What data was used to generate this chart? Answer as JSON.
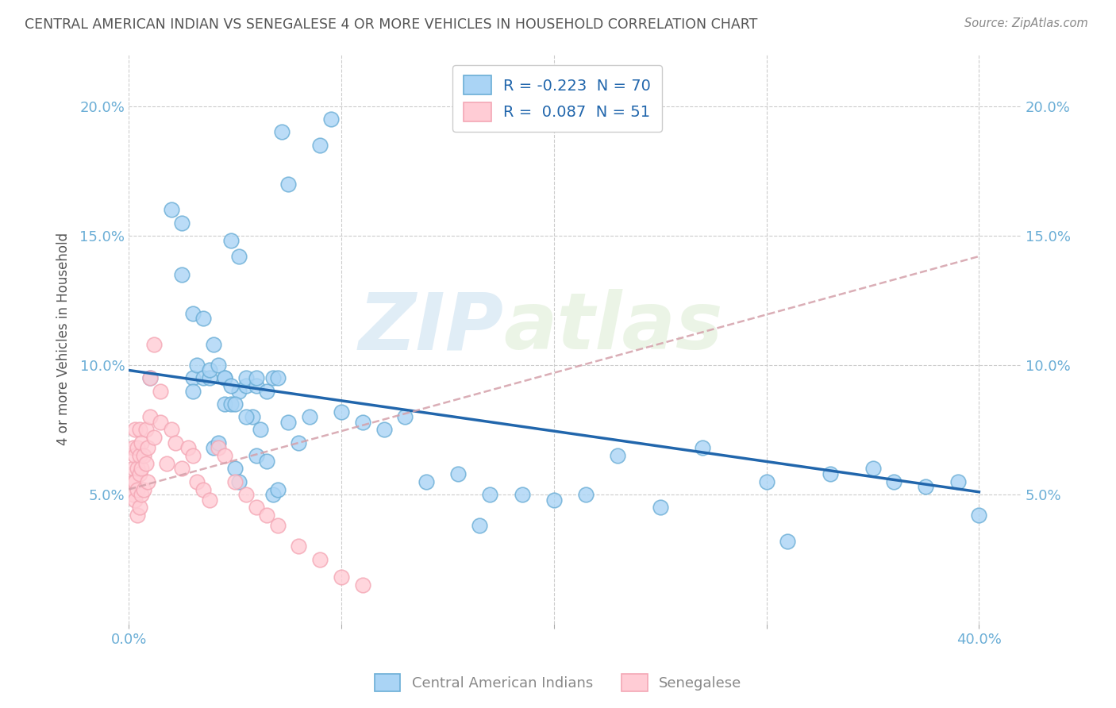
{
  "title": "CENTRAL AMERICAN INDIAN VS SENEGALESE 4 OR MORE VEHICLES IN HOUSEHOLD CORRELATION CHART",
  "source": "Source: ZipAtlas.com",
  "ylabel": "4 or more Vehicles in Household",
  "xlim": [
    0.0,
    0.42
  ],
  "ylim": [
    0.0,
    0.22
  ],
  "yticks": [
    0.0,
    0.05,
    0.1,
    0.15,
    0.2
  ],
  "ytick_labels_left": [
    "",
    "5.0%",
    "10.0%",
    "15.0%",
    "20.0%"
  ],
  "ytick_labels_right": [
    "",
    "5.0%",
    "10.0%",
    "15.0%",
    "20.0%"
  ],
  "xticks": [
    0.0,
    0.1,
    0.2,
    0.3,
    0.4
  ],
  "xtick_labels": [
    "0.0%",
    "",
    "",
    "",
    "40.0%"
  ],
  "watermark_part1": "ZIP",
  "watermark_part2": "atlas",
  "blue_scatter_x": [
    0.01,
    0.02,
    0.025,
    0.03,
    0.03,
    0.032,
    0.035,
    0.038,
    0.038,
    0.04,
    0.042,
    0.045,
    0.045,
    0.048,
    0.05,
    0.052,
    0.055,
    0.055,
    0.058,
    0.06,
    0.06,
    0.062,
    0.065,
    0.068,
    0.07,
    0.072,
    0.075,
    0.025,
    0.03,
    0.035,
    0.04,
    0.042,
    0.045,
    0.048,
    0.05,
    0.052,
    0.055,
    0.06,
    0.065,
    0.068,
    0.07,
    0.075,
    0.08,
    0.085,
    0.09,
    0.095,
    0.1,
    0.11,
    0.12,
    0.13,
    0.14,
    0.155,
    0.17,
    0.185,
    0.2,
    0.215,
    0.23,
    0.25,
    0.27,
    0.3,
    0.31,
    0.33,
    0.35,
    0.36,
    0.375,
    0.39,
    0.4,
    0.048,
    0.052,
    0.165
  ],
  "blue_scatter_y": [
    0.095,
    0.16,
    0.155,
    0.095,
    0.09,
    0.1,
    0.095,
    0.095,
    0.098,
    0.068,
    0.07,
    0.085,
    0.095,
    0.085,
    0.06,
    0.09,
    0.092,
    0.095,
    0.08,
    0.092,
    0.095,
    0.075,
    0.09,
    0.095,
    0.095,
    0.19,
    0.17,
    0.135,
    0.12,
    0.118,
    0.108,
    0.1,
    0.095,
    0.092,
    0.085,
    0.055,
    0.08,
    0.065,
    0.063,
    0.05,
    0.052,
    0.078,
    0.07,
    0.08,
    0.185,
    0.195,
    0.082,
    0.078,
    0.075,
    0.08,
    0.055,
    0.058,
    0.05,
    0.05,
    0.048,
    0.05,
    0.065,
    0.045,
    0.068,
    0.055,
    0.032,
    0.058,
    0.06,
    0.055,
    0.053,
    0.055,
    0.042,
    0.148,
    0.142,
    0.038
  ],
  "pink_scatter_x": [
    0.002,
    0.002,
    0.002,
    0.002,
    0.003,
    0.003,
    0.003,
    0.003,
    0.004,
    0.004,
    0.004,
    0.004,
    0.005,
    0.005,
    0.005,
    0.005,
    0.006,
    0.006,
    0.006,
    0.007,
    0.007,
    0.008,
    0.008,
    0.009,
    0.009,
    0.01,
    0.01,
    0.012,
    0.012,
    0.015,
    0.015,
    0.018,
    0.02,
    0.022,
    0.025,
    0.028,
    0.03,
    0.032,
    0.035,
    0.038,
    0.042,
    0.045,
    0.05,
    0.055,
    0.06,
    0.065,
    0.07,
    0.08,
    0.09,
    0.1,
    0.11
  ],
  "pink_scatter_y": [
    0.068,
    0.06,
    0.055,
    0.05,
    0.075,
    0.065,
    0.055,
    0.048,
    0.068,
    0.06,
    0.052,
    0.042,
    0.075,
    0.065,
    0.058,
    0.045,
    0.07,
    0.06,
    0.05,
    0.065,
    0.052,
    0.075,
    0.062,
    0.068,
    0.055,
    0.095,
    0.08,
    0.108,
    0.072,
    0.09,
    0.078,
    0.062,
    0.075,
    0.07,
    0.06,
    0.068,
    0.065,
    0.055,
    0.052,
    0.048,
    0.068,
    0.065,
    0.055,
    0.05,
    0.045,
    0.042,
    0.038,
    0.03,
    0.025,
    0.018,
    0.015
  ],
  "blue_trend_x0": 0.0,
  "blue_trend_x1": 0.4,
  "blue_trend_y0": 0.098,
  "blue_trend_y1": 0.051,
  "pink_trend_x0": 0.0,
  "pink_trend_x1": 0.4,
  "pink_trend_y0": 0.052,
  "pink_trend_y1": 0.142,
  "background_color": "#ffffff",
  "grid_color": "#cccccc",
  "title_color": "#555555",
  "tick_color": "#6baed6",
  "blue_face": "#aad4f5",
  "blue_edge": "#6baed6",
  "pink_face": "#ffccd5",
  "pink_edge": "#f4a7b5",
  "blue_line_color": "#2166ac",
  "pink_line_color": "#d4a0aa",
  "legend_label_blue": "Central American Indians",
  "legend_label_pink": "Senegalese",
  "legend_r_blue": "R = -0.223",
  "legend_n_blue": "N = 70",
  "legend_r_pink": "R =  0.087",
  "legend_n_pink": "N = 51"
}
